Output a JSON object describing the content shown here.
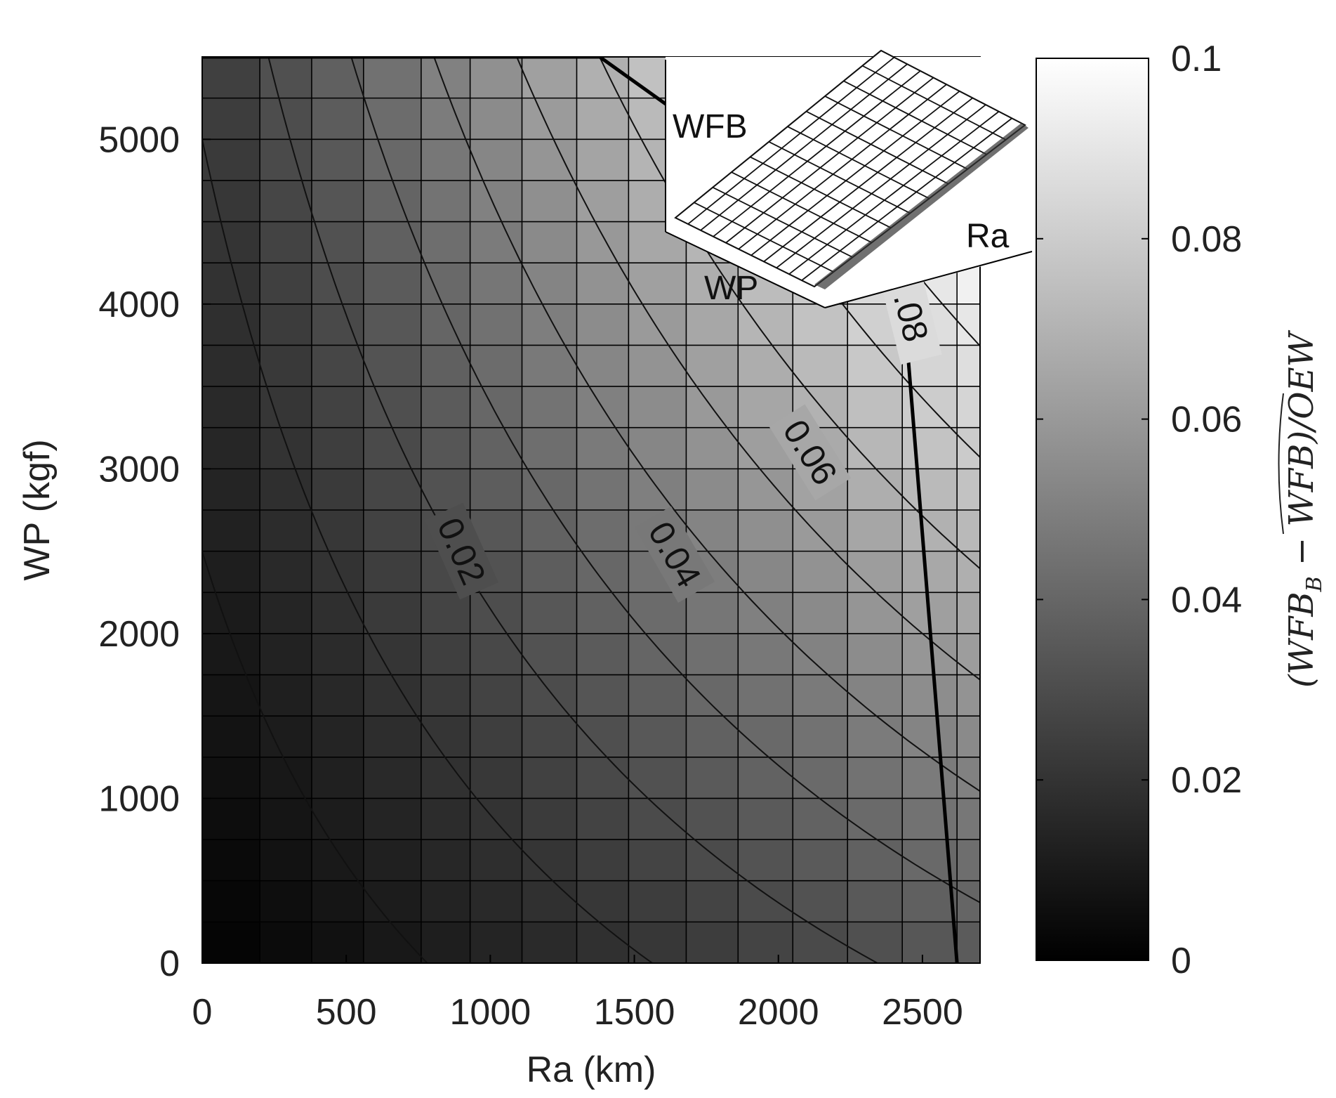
{
  "chart_data": {
    "type": "heatmap",
    "xlabel": "Ra (km)",
    "ylabel": "WP (kgf)",
    "xlim": [
      0,
      2700
    ],
    "ylim": [
      0,
      5500
    ],
    "x_ticks": [
      0,
      500,
      1000,
      1500,
      2000,
      2500
    ],
    "y_ticks": [
      0,
      1000,
      2000,
      3000,
      4000,
      5000
    ],
    "x_tick_labels": [
      "0",
      "500",
      "1000",
      "1500",
      "2000",
      "2500"
    ],
    "y_tick_labels": [
      "0",
      "1000",
      "2000",
      "3000",
      "4000",
      "5000"
    ],
    "grid": "on",
    "x_cells": [
      0,
      200,
      380,
      560,
      760,
      930,
      1110,
      1300,
      1480,
      1680,
      1860,
      2050,
      2240,
      2430,
      2620,
      2700
    ],
    "y_cells": [
      0,
      250,
      500,
      750,
      1000,
      1250,
      1500,
      1750,
      2000,
      2250,
      2500,
      2750,
      3000,
      3250,
      3500,
      3750,
      4000,
      4250,
      4500,
      4750,
      5000,
      5250,
      5500
    ],
    "z_note": "(WFB_B - WFB)/OEW",
    "contour_levels": [
      0.01,
      0.02,
      0.03,
      0.04,
      0.05,
      0.06,
      0.07,
      0.08,
      0.09
    ],
    "contour_labels": [
      {
        "text": "0.02",
        "level": 0.02,
        "x": 900,
        "y": 2500,
        "angle": 66
      },
      {
        "text": "0.04",
        "level": 0.04,
        "x": 1640,
        "y": 2480,
        "angle": 60
      },
      {
        "text": "0.06",
        "level": 0.06,
        "x": 2110,
        "y": 3100,
        "angle": 58
      },
      {
        "text": ".08",
        "level": 0.08,
        "x": 2460,
        "y": 3920,
        "angle": 76
      }
    ],
    "boundary_line": [
      [
        1380,
        5500
      ],
      [
        1620,
        5200
      ]
    ],
    "limit_line": [
      [
        2440,
        3900
      ],
      [
        2620,
        0
      ]
    ],
    "colorbar": {
      "min": 0,
      "max": 0.1,
      "ticks": [
        0,
        0.02,
        0.04,
        0.06,
        0.08,
        0.1
      ],
      "tick_labels": [
        "0",
        "0.02",
        "0.04",
        "0.06",
        "0.08",
        "0.1"
      ],
      "label_main": "(WFB",
      "label_sub": "B",
      "label_rest": " − WFB)/OEW",
      "colormap": "gray"
    },
    "inset": {
      "labels": [
        "WFB",
        "Ra",
        "WP"
      ]
    }
  },
  "colors": {
    "background": "#ffffff",
    "grid_line": "#000000",
    "contour_line": "#111111",
    "inset_mesh": "#111111",
    "inset_face": "#ffffff"
  }
}
